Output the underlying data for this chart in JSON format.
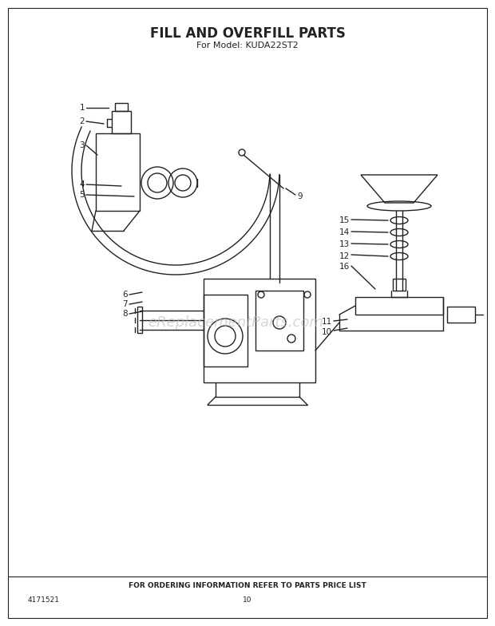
{
  "title": "FILL AND OVERFILL PARTS",
  "subtitle": "For Model: KUDA22ST2",
  "watermark": "eReplacementParts.com",
  "footer_text": "FOR ORDERING INFORMATION REFER TO PARTS PRICE LIST",
  "doc_number": "4171521",
  "page_number": "10",
  "background_color": "#ffffff",
  "line_color": "#222222",
  "text_color": "#222222",
  "watermark_color": "#bbbbbb",
  "title_fontsize": 12,
  "subtitle_fontsize": 8,
  "label_fontsize": 7.5,
  "footer_fontsize": 6.5
}
